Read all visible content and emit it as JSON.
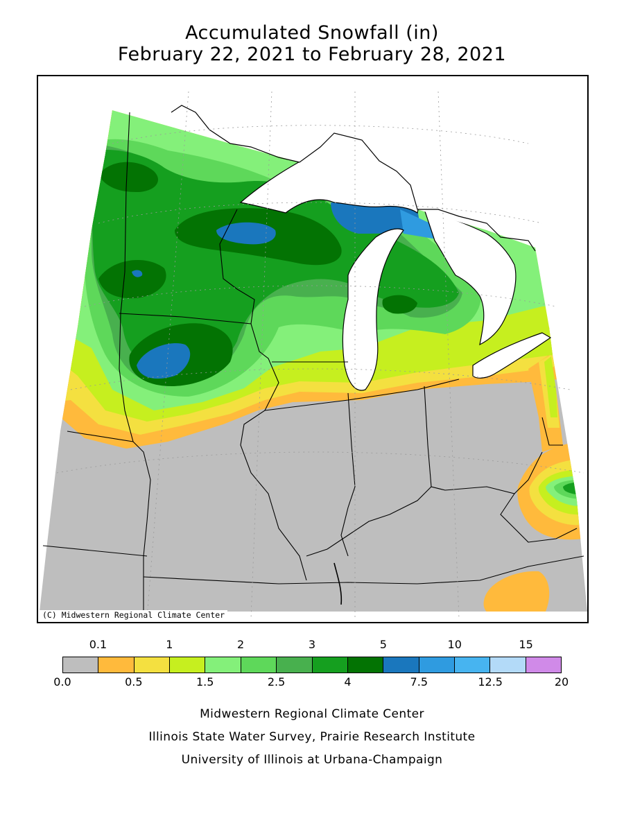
{
  "title": {
    "line1": "Accumulated Snowfall (in)",
    "line2": "February 22, 2021 to February 28, 2021"
  },
  "map": {
    "credit": "(C) Midwestern Regional Climate Center"
  },
  "legend": {
    "top_labels": [
      "0.1",
      "1",
      "2",
      "3",
      "5",
      "10",
      "15"
    ],
    "bottom_labels": [
      "0.0",
      "0.5",
      "1.5",
      "2.5",
      "4",
      "7.5",
      "12.5",
      "20"
    ],
    "colors": [
      "#bebebe",
      "#ffba3c",
      "#f4e040",
      "#c6ef1f",
      "#84f07a",
      "#5ed85a",
      "#48b04e",
      "#159f1f",
      "#037303",
      "#1a77bd",
      "#2f9be0",
      "#47b4f0",
      "#b3daf8",
      "#d08ae8"
    ]
  },
  "footer": {
    "line1": "Midwestern Regional Climate Center",
    "line2": "Illinois State Water Survey, Prairie Research Institute",
    "line3": "University of Illinois at Urbana-Champaign"
  }
}
